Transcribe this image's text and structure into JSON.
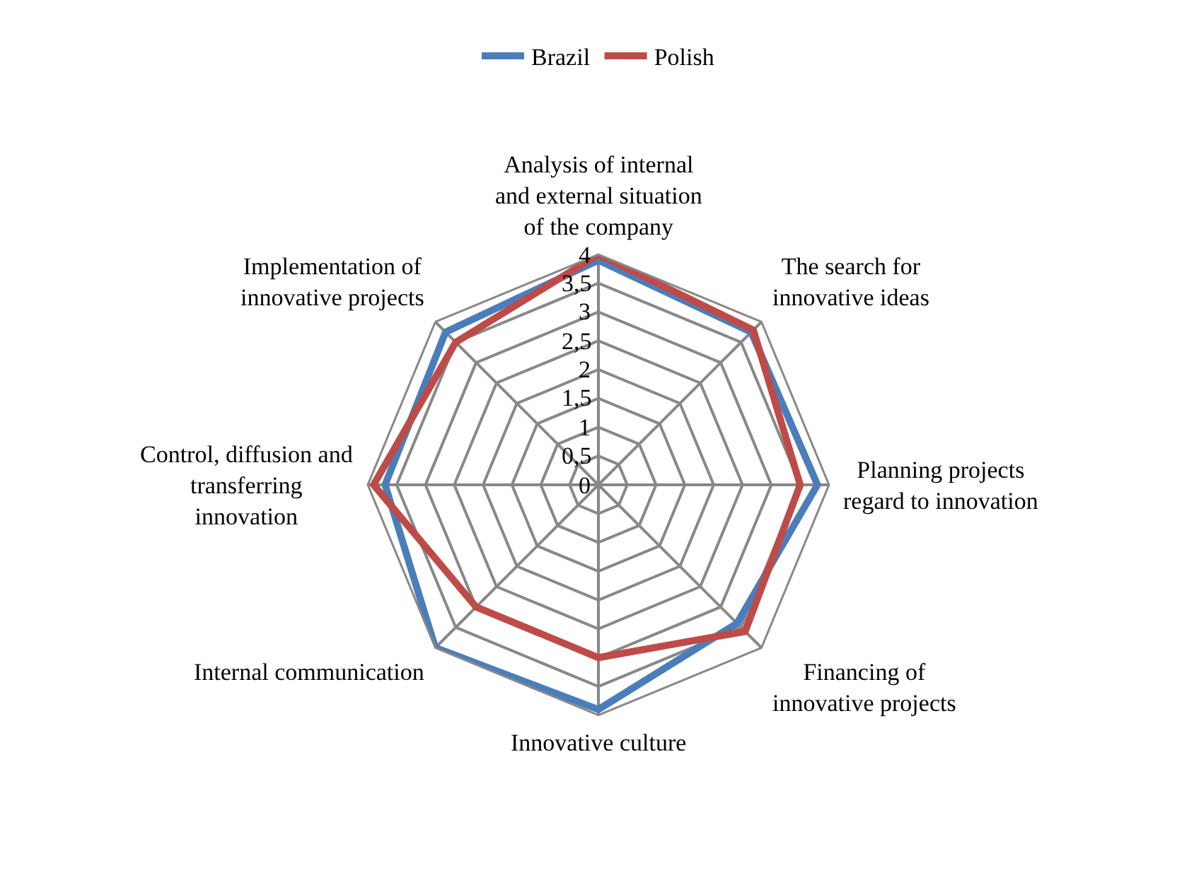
{
  "chart_data": {
    "type": "radar",
    "categories": [
      "Analysis of internal and external situation of the company",
      "The search for innovative ideas",
      "Planning projects regard to innovation",
      "Financing of innovative projects",
      "Innovative culture",
      "Internal communication",
      "Control, diffusion and transferring innovation",
      "Implementation of innovative projects"
    ],
    "series": [
      {
        "name": "Brazil",
        "color": "#4a7ebb",
        "values": [
          3.9,
          3.75,
          3.8,
          3.4,
          3.9,
          4.0,
          3.7,
          3.75
        ]
      },
      {
        "name": "Polish",
        "color": "#be4b48",
        "values": [
          4.0,
          3.8,
          3.5,
          3.6,
          3.0,
          3.0,
          3.9,
          3.5
        ]
      }
    ],
    "ylim": [
      0,
      4
    ],
    "yticks": [
      0,
      {
        "value": 0.5,
        "label": "0,5"
      },
      1,
      {
        "value": 1.5,
        "label": "1,5"
      },
      2,
      {
        "value": 2.5,
        "label": "2,5"
      },
      3,
      {
        "value": 3.5,
        "label": "3,5"
      },
      4
    ],
    "grid": true,
    "legend": "top",
    "marker": "none",
    "line_style": "solid"
  }
}
